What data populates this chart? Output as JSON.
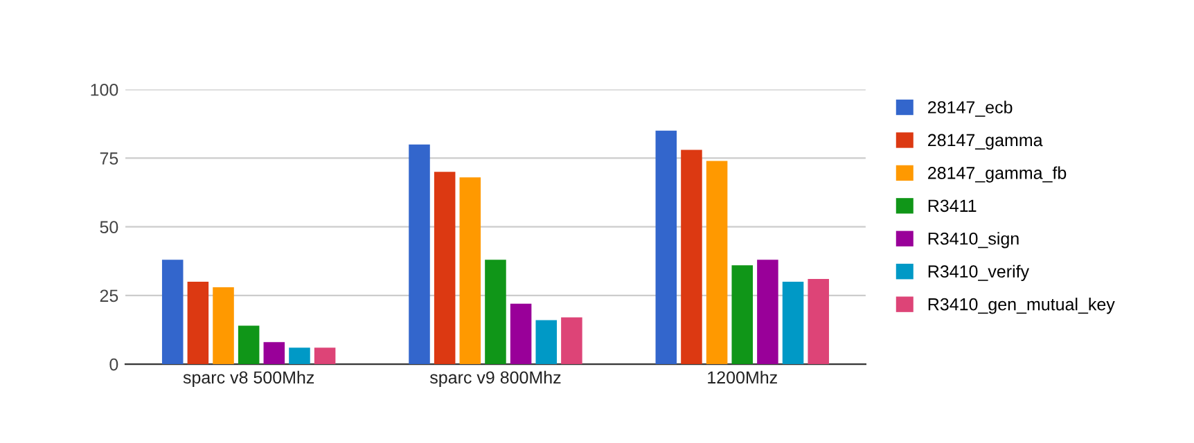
{
  "chart_data": {
    "type": "bar",
    "categories": [
      "sparc v8 500Mhz",
      "sparc v9 800Mhz",
      "1200Mhz"
    ],
    "series": [
      {
        "name": "28147_ecb",
        "color": "#3366cc",
        "values": [
          38,
          80,
          85
        ]
      },
      {
        "name": "28147_gamma",
        "color": "#dc3912",
        "values": [
          30,
          70,
          78
        ]
      },
      {
        "name": "28147_gamma_fb",
        "color": "#ff9900",
        "values": [
          28,
          68,
          74
        ]
      },
      {
        "name": "R3411",
        "color": "#109618",
        "values": [
          14,
          38,
          36
        ]
      },
      {
        "name": "R3410_sign",
        "color": "#990099",
        "values": [
          8,
          22,
          38
        ]
      },
      {
        "name": "R3410_verify",
        "color": "#0099c6",
        "values": [
          6,
          16,
          30
        ]
      },
      {
        "name": "R3410_gen_mutual_key",
        "color": "#dd4477",
        "values": [
          6,
          17,
          31
        ]
      }
    ],
    "ylim": [
      0,
      100
    ],
    "yticks": [
      0,
      25,
      50,
      75,
      100
    ],
    "grid": "y",
    "legend": "right"
  }
}
